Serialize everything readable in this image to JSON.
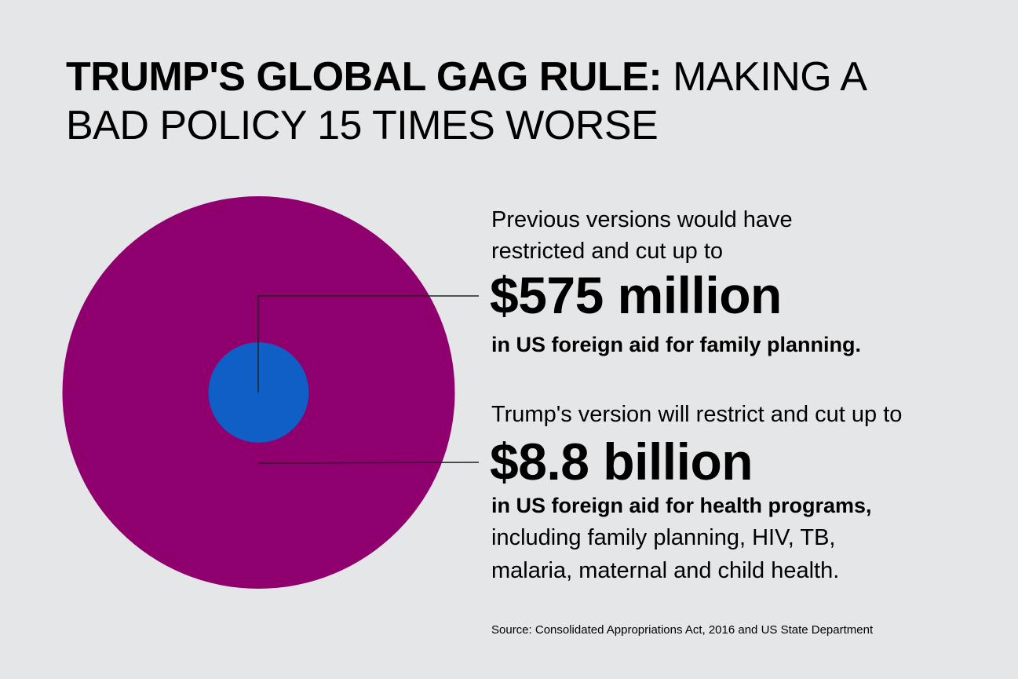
{
  "title": {
    "bold": "TRUMP'S GLOBAL GAG RULE:",
    "rest": " MAKING A",
    "line2": "BAD POLICY 15 TIMES WORSE"
  },
  "previous": {
    "line1": "Previous versions would have",
    "line2": "restricted and cut up to",
    "amount": "$575 million",
    "desc": "in US foreign aid for family planning."
  },
  "trump": {
    "line1": "Trump's version will restrict and cut up to",
    "amount": "$8.8 billion",
    "desc": "in US foreign aid for health programs,",
    "detail1": "including family planning, HIV, TB,",
    "detail2": "malaria, maternal and child health."
  },
  "source": "Source: Consolidated Appropriations Act, 2016 and US State Department",
  "chart_data": {
    "type": "proportional-area",
    "series": [
      {
        "label": "$8.8 billion",
        "value": 8800,
        "unit": "million USD",
        "color": "#8f006e"
      },
      {
        "label": "$575 million",
        "value": 575,
        "unit": "million USD",
        "color": "#0f5fc6"
      }
    ]
  }
}
